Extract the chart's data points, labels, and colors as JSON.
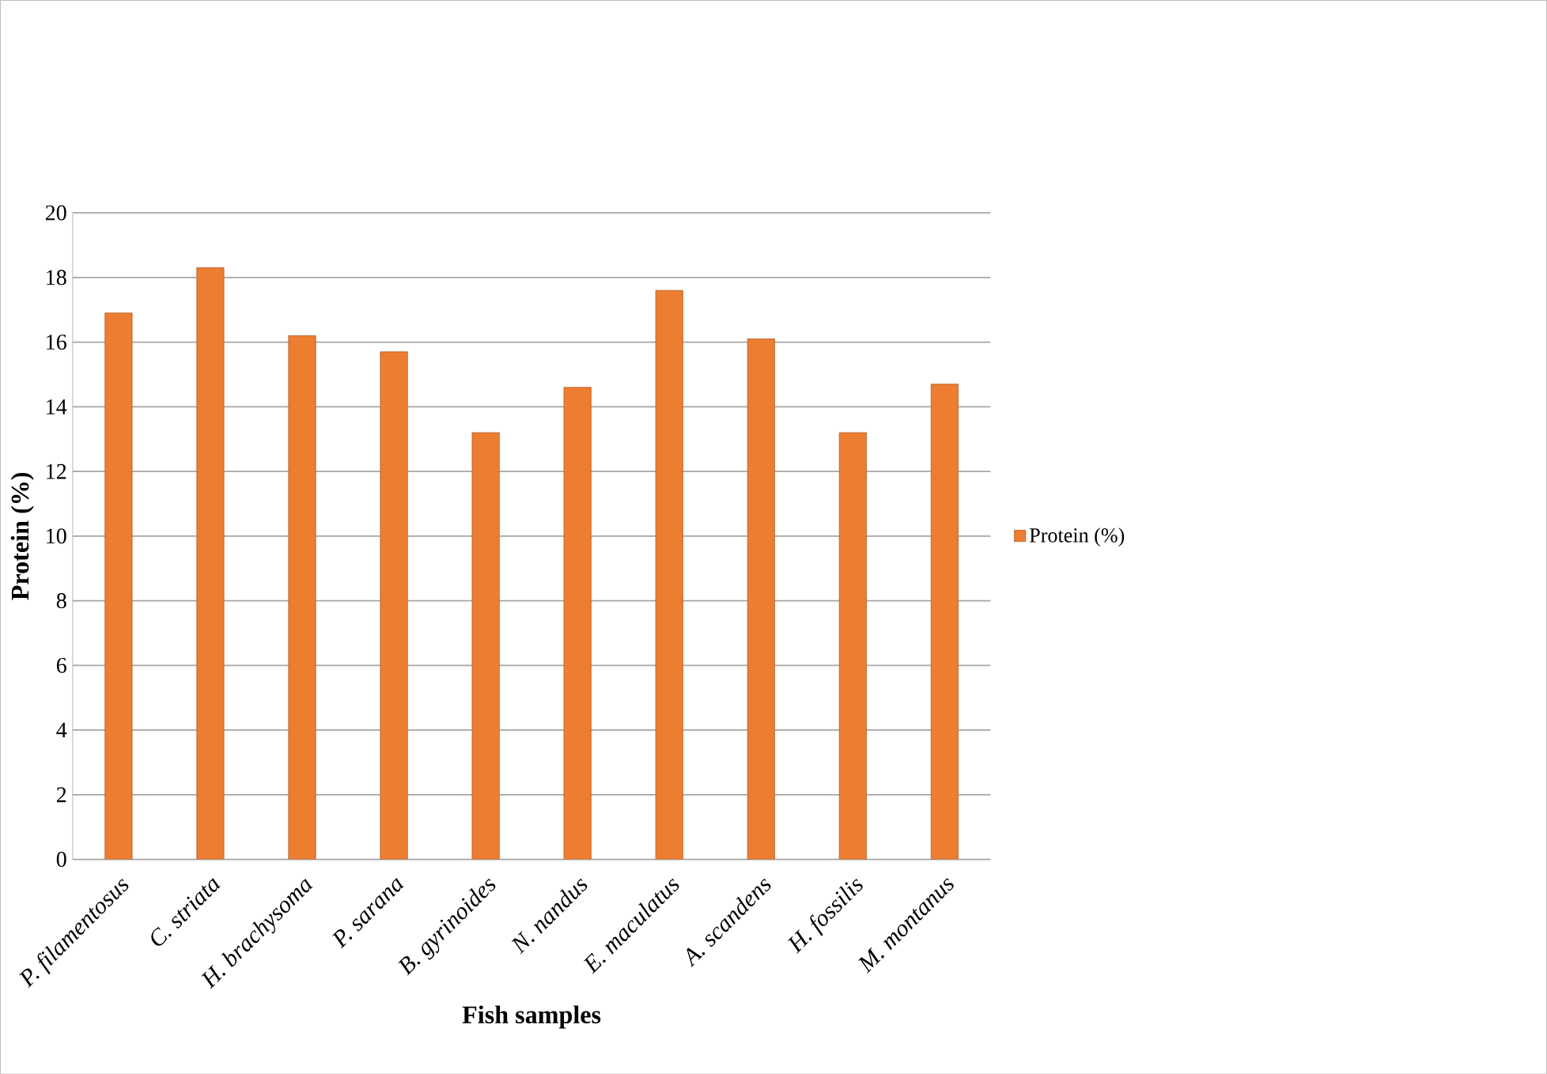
{
  "chart_data": {
    "type": "bar",
    "xlabel": "Fish samples",
    "ylabel": "Protein (%)",
    "categories": [
      "P. filamentosus",
      "C. striata",
      "H. brachysoma",
      "P. sarana",
      "B. gyrinoides",
      "N. nandus",
      "E. maculatus",
      "A. scandens",
      "H. fossilis",
      "M. montanus"
    ],
    "series": [
      {
        "name": "Protein (%)",
        "color": "#ed7d31",
        "values": [
          16.9,
          18.3,
          16.2,
          15.7,
          13.2,
          14.6,
          17.6,
          16.1,
          13.2,
          14.7
        ]
      }
    ],
    "ylim": [
      0,
      20
    ],
    "yticks": [
      0,
      2,
      4,
      6,
      8,
      10,
      12,
      14,
      16,
      18,
      20
    ],
    "grid": "y",
    "legend": "right"
  }
}
